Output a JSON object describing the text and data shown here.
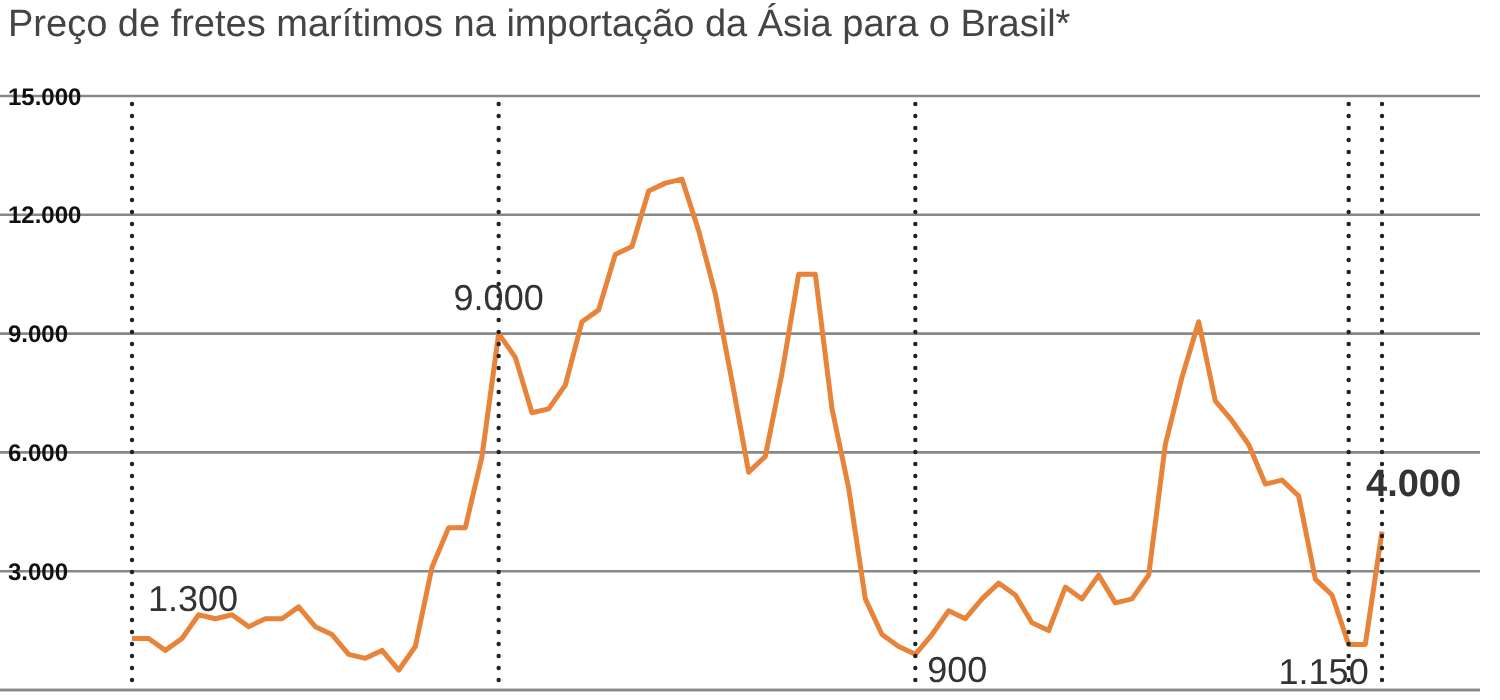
{
  "chart_data": {
    "type": "line",
    "title": "Preço de fretes marítimos na importação da Ásia para o Brasil*",
    "categories": [
      null,
      null,
      null,
      null,
      null,
      null,
      null,
      null,
      null,
      null,
      null,
      null,
      null,
      null,
      null,
      null,
      null,
      null,
      null,
      null,
      null,
      null,
      null,
      null,
      null,
      null,
      null,
      null,
      null,
      null,
      null,
      null,
      null,
      null,
      null,
      null,
      null,
      null,
      null,
      null,
      null,
      null,
      null,
      null,
      null,
      null,
      null,
      null,
      null,
      null,
      null,
      null,
      null,
      null,
      null,
      null,
      null,
      null,
      null,
      null,
      null,
      null,
      null,
      null,
      null,
      null,
      null,
      null,
      null,
      null,
      null,
      null,
      null,
      null,
      null,
      null
    ],
    "values": [
      1300,
      1300,
      1000,
      1300,
      1900,
      1800,
      1900,
      1600,
      1800,
      1800,
      2100,
      1600,
      1400,
      900,
      800,
      1000,
      500,
      1100,
      3100,
      4100,
      4100,
      5900,
      9000,
      8400,
      7000,
      7100,
      7700,
      9300,
      9600,
      11000,
      11200,
      12600,
      12800,
      12900,
      11600,
      10000,
      7800,
      5500,
      5900,
      8000,
      10500,
      10500,
      7100,
      5100,
      2300,
      1400,
      1100,
      900,
      1400,
      2000,
      1800,
      2300,
      2700,
      2400,
      1700,
      1500,
      2600,
      2300,
      2900,
      2200,
      2300,
      2900,
      6200,
      7900,
      9300,
      7300,
      6800,
      6200,
      5200,
      5300,
      4900,
      2800,
      2400,
      1150,
      1150,
      4000
    ],
    "value_labels": [
      "1.300",
      null,
      null,
      null,
      null,
      null,
      null,
      null,
      null,
      null,
      null,
      null,
      null,
      null,
      null,
      null,
      null,
      null,
      null,
      null,
      null,
      null,
      "9.000",
      null,
      null,
      null,
      null,
      null,
      null,
      null,
      null,
      null,
      null,
      null,
      null,
      null,
      null,
      null,
      null,
      null,
      null,
      null,
      null,
      null,
      null,
      null,
      null,
      "900",
      null,
      null,
      null,
      null,
      null,
      null,
      null,
      null,
      null,
      null,
      null,
      null,
      null,
      null,
      null,
      null,
      null,
      null,
      null,
      null,
      null,
      null,
      null,
      null,
      null,
      "1.150",
      null,
      "4.000"
    ],
    "color": "#e8833a",
    "marker": "none",
    "ylim": [
      0,
      15000
    ],
    "yticks": [
      {
        "value": 3000,
        "label": "3.000"
      },
      {
        "value": 6000,
        "label": "6.000"
      },
      {
        "value": 9000,
        "label": "9.000"
      },
      {
        "value": 12000,
        "label": "12.000"
      },
      {
        "value": 15000,
        "label": "15.000"
      }
    ],
    "grid": "y",
    "tick_labels": "y"
  }
}
